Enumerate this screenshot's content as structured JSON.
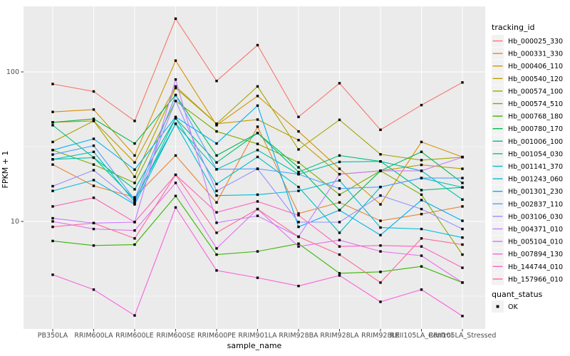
{
  "chart_data": {
    "type": "line",
    "title": "",
    "xlabel": "sample_name",
    "ylabel": "FPKM + 1",
    "y_scale": "log10",
    "y_ticks": [
      100,
      10
    ],
    "y_minor_ticks": [
      31.62,
      3.162
    ],
    "ylim": [
      1.9,
      260
    ],
    "grid": true,
    "panel_bg": "#EBEBEB",
    "grid_color": "#FFFFFF",
    "point_shape": "square",
    "point_color": "#000000",
    "legend_position": "right",
    "categories": [
      "PB350LA",
      "RRIM600LA",
      "RRIM600LE",
      "RRIM600SE",
      "RRIM600PE",
      "RRIM901LA",
      "RRIM928BA",
      "RRIM928LA",
      "RRIM928LE",
      "RRII105LA_Control",
      "RRII105LA_Stressed"
    ],
    "series": [
      {
        "name": "Hb_000025_330",
        "color": "#F8766D",
        "values": [
          83,
          74,
          47,
          227,
          87,
          151,
          50,
          84,
          41,
          60,
          85
        ]
      },
      {
        "name": "Hb_000331_330",
        "color": "#EA8331",
        "values": [
          24,
          17.3,
          14.5,
          27.6,
          13.4,
          43,
          11.3,
          13.4,
          10.1,
          11.2,
          12.6
        ]
      },
      {
        "name": "Hb_000406_110",
        "color": "#D89000",
        "values": [
          54,
          56,
          27.6,
          119,
          44,
          69,
          40,
          22.5,
          13,
          34,
          27
        ]
      },
      {
        "name": "Hb_000540_120",
        "color": "#C09B00",
        "values": [
          46,
          47,
          24.8,
          80,
          45,
          48,
          35,
          20.7,
          21.8,
          23.9,
          22.5
        ]
      },
      {
        "name": "Hb_000574_100",
        "color": "#A3A500",
        "values": [
          34,
          47,
          19.9,
          78,
          45,
          80,
          30.3,
          47.8,
          28.1,
          25.7,
          26.9
        ]
      },
      {
        "name": "Hb_000574_510",
        "color": "#7CAE00",
        "values": [
          30,
          24,
          18.1,
          64,
          40,
          33,
          24.8,
          15.1,
          21.8,
          15.1,
          6.0
        ]
      },
      {
        "name": "Hb_000768_180",
        "color": "#39B600",
        "values": [
          7.4,
          6.9,
          7.0,
          14.8,
          6.0,
          6.3,
          7.1,
          4.5,
          4.6,
          5.0,
          3.9
        ]
      },
      {
        "name": "Hb_000780_170",
        "color": "#00BB4E",
        "values": [
          46,
          48.5,
          33.2,
          70,
          27.6,
          39,
          23,
          11.9,
          21.8,
          29.2,
          18.1
        ]
      },
      {
        "name": "Hb_001006_100",
        "color": "#00BF7D",
        "values": [
          44,
          26.7,
          16.4,
          49,
          24.8,
          39,
          21.4,
          27.6,
          25.2,
          16.2,
          16.9
        ]
      },
      {
        "name": "Hb_001054_030",
        "color": "#00C1A7",
        "values": [
          26,
          26.7,
          14.0,
          45,
          22.3,
          30,
          20.7,
          25,
          25.2,
          21.8,
          14.0
        ]
      },
      {
        "name": "Hb_001141_370",
        "color": "#00BFC4",
        "values": [
          26,
          29.2,
          13.5,
          49,
          17.8,
          27,
          17,
          8.4,
          17,
          19.5,
          16.9
        ]
      },
      {
        "name": "Hb_001243_060",
        "color": "#00BBDB",
        "values": [
          16,
          18.9,
          13,
          45,
          14.9,
          15.1,
          16,
          18.8,
          9.1,
          8.9,
          7.8
        ]
      },
      {
        "name": "Hb_001301_230",
        "color": "#00B0F6",
        "values": [
          30,
          35.7,
          22.2,
          50,
          33.2,
          59.5,
          9.2,
          11.9,
          8.1,
          13.9,
          10.1
        ]
      },
      {
        "name": "Hb_002837_110",
        "color": "#529EFF",
        "values": [
          28,
          32.1,
          14,
          70,
          22.3,
          22.5,
          20.7,
          16.6,
          17,
          19.5,
          19.5
        ]
      },
      {
        "name": "Hb_003106_030",
        "color": "#9590FF",
        "values": [
          17.2,
          22,
          13.2,
          64,
          16,
          22.5,
          9.9,
          9.9,
          14.9,
          12.1,
          8.9
        ]
      },
      {
        "name": "Hb_004371_010",
        "color": "#C77CFF",
        "values": [
          10.5,
          9.75,
          9.9,
          89,
          9.8,
          10.9,
          7.9,
          20.7,
          21.8,
          21.8,
          26.9
        ]
      },
      {
        "name": "Hb_005104_010",
        "color": "#E76BF3",
        "values": [
          10,
          8.9,
          8.7,
          18.1,
          6.6,
          12.1,
          6.8,
          7.5,
          6.3,
          5.9,
          3.9
        ]
      },
      {
        "name": "Hb_007894_130",
        "color": "#FA62DB",
        "values": [
          4.4,
          3.5,
          2.35,
          12.4,
          4.7,
          4.2,
          3.7,
          4.35,
          2.9,
          3.5,
          2.33
        ]
      },
      {
        "name": "Hb_144744_010",
        "color": "#FF62BC",
        "values": [
          12.6,
          14.4,
          9.9,
          20.5,
          11.5,
          13.6,
          11,
          6.8,
          6.9,
          6.8,
          4.9
        ]
      },
      {
        "name": "Hb_157966_010",
        "color": "#FF6A98",
        "values": [
          9.2,
          9.75,
          7.7,
          20.5,
          8.4,
          12.1,
          7.9,
          6.0,
          3.9,
          7.7,
          7.0
        ]
      }
    ]
  },
  "legend": {
    "tracking_title": "tracking_id",
    "quant_title": "quant_status",
    "quant_items": [
      {
        "label": "OK",
        "marker": "black-square"
      }
    ]
  }
}
